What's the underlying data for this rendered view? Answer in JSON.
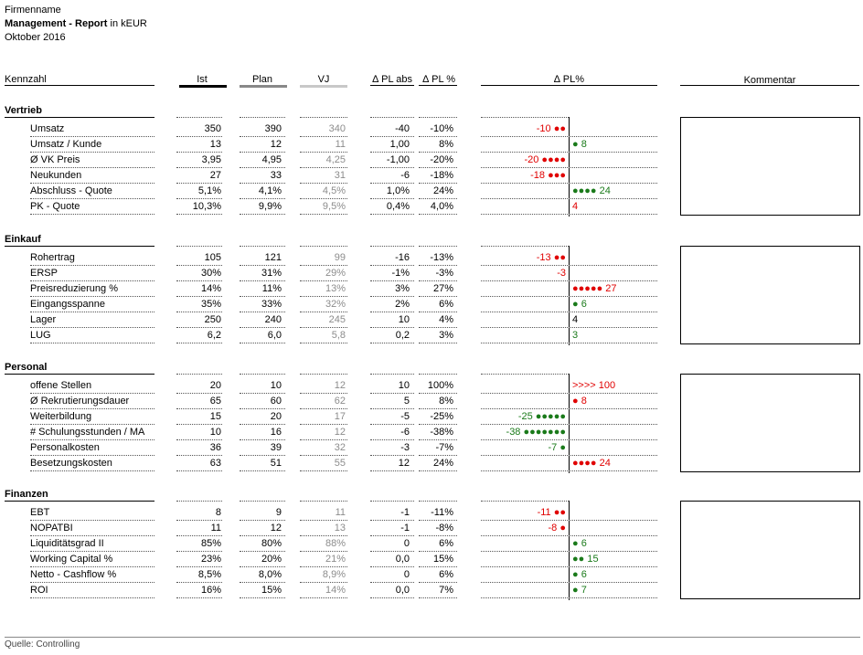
{
  "header": {
    "company": "Firmenname",
    "title_bold": "Management - Report",
    "title_suffix": " in kEUR",
    "date": "Oktober 2016"
  },
  "columns": {
    "kennzahl": "Kennzahl",
    "ist": "Ist",
    "plan": "Plan",
    "vj": "VJ",
    "pl_abs": "∆ PL abs",
    "pl_pct": "∆ PL %",
    "pl_chart": "∆ PL%",
    "kommentar": "Kommentar"
  },
  "sections": [
    {
      "title": "Vertrieb",
      "rows": [
        {
          "label": "Umsatz",
          "ist": "350",
          "plan": "390",
          "vj": "340",
          "abs": "-40",
          "pct": "-10%",
          "bar": "-10 ●●",
          "value": -10,
          "color": "red"
        },
        {
          "label": "Umsatz / Kunde",
          "ist": "13",
          "plan": "12",
          "vj": "11",
          "abs": "1,00",
          "pct": "8%",
          "bar": "● 8",
          "value": 8,
          "color": "green"
        },
        {
          "label": "Ø VK Preis",
          "ist": "3,95",
          "plan": "4,95",
          "vj": "4,25",
          "abs": "-1,00",
          "pct": "-20%",
          "bar": "-20 ●●●●",
          "value": -20,
          "color": "red"
        },
        {
          "label": "Neukunden",
          "ist": "27",
          "plan": "33",
          "vj": "31",
          "abs": "-6",
          "pct": "-18%",
          "bar": "-18 ●●●",
          "value": -18,
          "color": "red"
        },
        {
          "label": "Abschluss - Quote",
          "ist": "5,1%",
          "plan": "4,1%",
          "vj": "4,5%",
          "abs": "1,0%",
          "pct": "24%",
          "bar": "●●●● 24",
          "value": 24,
          "color": "green"
        },
        {
          "label": "PK - Quote",
          "ist": "10,3%",
          "plan": "9,9%",
          "vj": "9,5%",
          "abs": "0,4%",
          "pct": "4,0%",
          "bar": "4",
          "value": 4,
          "color": "red"
        }
      ]
    },
    {
      "title": "Einkauf",
      "rows": [
        {
          "label": "Rohertrag",
          "ist": "105",
          "plan": "121",
          "vj": "99",
          "abs": "-16",
          "pct": "-13%",
          "bar": "-13 ●●",
          "value": -13,
          "color": "red"
        },
        {
          "label": "ERSP",
          "ist": "30%",
          "plan": "31%",
          "vj": "29%",
          "abs": "-1%",
          "pct": "-3%",
          "bar": "-3",
          "value": -3,
          "color": "red"
        },
        {
          "label": "Preisreduzierung %",
          "ist": "14%",
          "plan": "11%",
          "vj": "13%",
          "abs": "3%",
          "pct": "27%",
          "bar": "●●●●● 27",
          "value": 27,
          "color": "red"
        },
        {
          "label": "Eingangsspanne",
          "ist": "35%",
          "plan": "33%",
          "vj": "32%",
          "abs": "2%",
          "pct": "6%",
          "bar": "● 6",
          "value": 6,
          "color": "green"
        },
        {
          "label": "Lager",
          "ist": "250",
          "plan": "240",
          "vj": "245",
          "abs": "10",
          "pct": "4%",
          "bar": "4",
          "value": 4,
          "color": "black"
        },
        {
          "label": "LUG",
          "ist": "6,2",
          "plan": "6,0",
          "vj": "5,8",
          "abs": "0,2",
          "pct": "3%",
          "bar": "3",
          "value": 3,
          "color": "green"
        }
      ]
    },
    {
      "title": "Personal",
      "rows": [
        {
          "label": "offene Stellen",
          "ist": "20",
          "plan": "10",
          "vj": "12",
          "abs": "10",
          "pct": "100%",
          "bar": ">>>> 100",
          "value": 100,
          "color": "red"
        },
        {
          "label": "Ø Rekrutierungsdauer",
          "ist": "65",
          "plan": "60",
          "vj": "62",
          "abs": "5",
          "pct": "8%",
          "bar": "● 8",
          "value": 8,
          "color": "red"
        },
        {
          "label": "Weiterbildung",
          "ist": "15",
          "plan": "20",
          "vj": "17",
          "abs": "-5",
          "pct": "-25%",
          "bar": "-25 ●●●●●",
          "value": -25,
          "color": "green"
        },
        {
          "label": "# Schulungsstunden / MA",
          "ist": "10",
          "plan": "16",
          "vj": "12",
          "abs": "-6",
          "pct": "-38%",
          "bar": "-38 ●●●●●●●",
          "value": -38,
          "color": "green"
        },
        {
          "label": "Personalkosten",
          "ist": "36",
          "plan": "39",
          "vj": "32",
          "abs": "-3",
          "pct": "-7%",
          "bar": "-7 ●",
          "value": -7,
          "color": "green"
        },
        {
          "label": "Besetzungskosten",
          "ist": "63",
          "plan": "51",
          "vj": "55",
          "abs": "12",
          "pct": "24%",
          "bar": "●●●● 24",
          "value": 24,
          "color": "red"
        }
      ]
    },
    {
      "title": "Finanzen",
      "rows": [
        {
          "label": "EBT",
          "ist": "8",
          "plan": "9",
          "vj": "11",
          "abs": "-1",
          "pct": "-11%",
          "bar": "-11 ●●",
          "value": -11,
          "color": "red"
        },
        {
          "label": "NOPATBI",
          "ist": "11",
          "plan": "12",
          "vj": "13",
          "abs": "-1",
          "pct": "-8%",
          "bar": "-8 ●",
          "value": -8,
          "color": "red"
        },
        {
          "label": "Liquiditätsgrad II",
          "ist": "85%",
          "plan": "80%",
          "vj": "88%",
          "abs": "0",
          "pct": "6%",
          "bar": "● 6",
          "value": 6,
          "color": "green"
        },
        {
          "label": "Working Capital %",
          "ist": "23%",
          "plan": "20%",
          "vj": "21%",
          "abs": "0,0",
          "pct": "15%",
          "bar": "●● 15",
          "value": 15,
          "color": "green"
        },
        {
          "label": "Netto - Cashflow %",
          "ist": "8,5%",
          "plan": "8,0%",
          "vj": "8,9%",
          "abs": "0",
          "pct": "6%",
          "bar": "● 6",
          "value": 6,
          "color": "green"
        },
        {
          "label": "ROI",
          "ist": "16%",
          "plan": "15%",
          "vj": "14%",
          "abs": "0,0",
          "pct": "7%",
          "bar": "● 7",
          "value": 7,
          "color": "green"
        }
      ]
    }
  ],
  "footer": {
    "source": "Quelle: Controlling"
  },
  "colors": {
    "red": "#e00000",
    "green": "#1a7a1a",
    "vj_grey": "#8c8c8c"
  }
}
